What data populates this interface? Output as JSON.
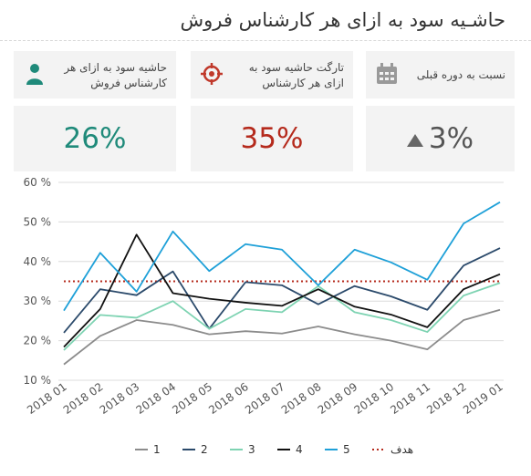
{
  "title": "حاشـیه سود به ازای هر کارشناس فروش",
  "cards": [
    {
      "label_line1": "حاشیه سود به ازای هر",
      "label_line2": "کارشناس فروش",
      "value": "26%",
      "value_color": "#1f8a7a",
      "icon": "person-icon",
      "icon_color": "#1f8a7a"
    },
    {
      "label_line1": "تارگت حاشیه سود به",
      "label_line2": "ازای هر کارشناس",
      "value": "35%",
      "value_color": "#b52a1c",
      "icon": "target-icon",
      "icon_color": "#c0392b"
    },
    {
      "label_line1": "نسبت به دوره قبلی",
      "label_line2": "",
      "value": "3%",
      "value_color": "#555555",
      "icon": "calendar-icon",
      "icon_color": "#999999",
      "trend_icon": "triangle-up-icon"
    }
  ],
  "chart_data": {
    "type": "line",
    "categories": [
      "2018 01",
      "2018 02",
      "2018 03",
      "2018 04",
      "2018 05",
      "2018 06",
      "2018 07",
      "2018 08",
      "2018 09",
      "2018 10",
      "2018 11",
      "2018 12",
      "2019 01"
    ],
    "y_ticks": [
      "10 %",
      "20 %",
      "30 %",
      "40 %",
      "50 %",
      "60 %"
    ],
    "ylim": [
      10,
      60
    ],
    "grid": "horizontal",
    "legend_position": "bottom",
    "series": [
      {
        "name": "1",
        "color": "#8c8c8c",
        "values": [
          14,
          21.2,
          25.2,
          24,
          21.6,
          22.4,
          21.8,
          23.6,
          21.6,
          20,
          17.8,
          25.2,
          27.8
        ]
      },
      {
        "name": "2",
        "color": "#2b4a6b",
        "values": [
          22,
          33,
          31.5,
          37.5,
          23,
          34.8,
          34,
          29.2,
          33.8,
          31.2,
          27.8,
          39,
          43.4
        ]
      },
      {
        "name": "3",
        "color": "#7ed3b2",
        "values": [
          17.6,
          26.5,
          25.8,
          30,
          23,
          28,
          27.2,
          33.8,
          27.2,
          25.2,
          22.2,
          31.4,
          34.6
        ]
      },
      {
        "name": "4",
        "color": "#111111",
        "values": [
          18.4,
          28,
          46.8,
          32,
          30.6,
          29.6,
          28.8,
          33,
          28.6,
          26.6,
          23.4,
          33,
          36.8
        ]
      },
      {
        "name": "5",
        "color": "#1ea0d8",
        "values": [
          27.6,
          42.2,
          32.4,
          47.6,
          37.6,
          44.4,
          43,
          34,
          43,
          39.8,
          35.4,
          49.6,
          55
        ]
      }
    ],
    "target": {
      "name": "هدف",
      "color": "#b52a1c",
      "value": 35
    }
  }
}
